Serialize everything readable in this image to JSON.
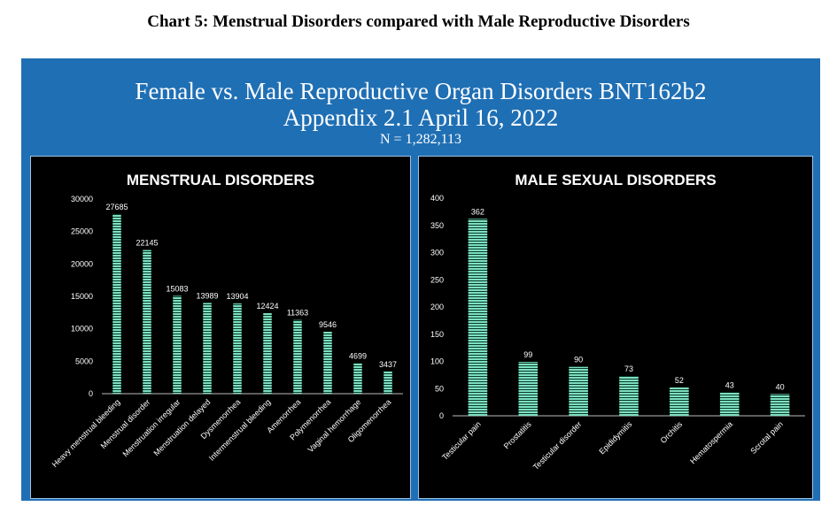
{
  "caption": "Chart 5:  Menstrual Disorders compared with Male Reproductive Disorders",
  "panel": {
    "title_line1": "Female vs. Male Reproductive Organ Disorders BNT162b2",
    "title_line2": "Appendix 2.1 April 16, 2022",
    "subtitle": "N = 1,282,113",
    "background_color": "#1f6fb4"
  },
  "chart_data": [
    {
      "type": "bar",
      "title": "MENSTRUAL DISORDERS",
      "categories": [
        "Heavy menstrual bleeding",
        "Menstrual disorder",
        "Menstruation irregular",
        "Menstruation delayed",
        "Dysmenorrhea",
        "Intermenstrual bleeding",
        "Amenorrhea",
        "Polymenorrhea",
        "Vaginal hemorrhage",
        "Oligomenorrhea"
      ],
      "values": [
        27685,
        22145,
        15083,
        13989,
        13904,
        12424,
        11363,
        9546,
        4699,
        3437
      ],
      "ylim": [
        0,
        30000
      ],
      "yticks": [
        0,
        5000,
        10000,
        15000,
        20000,
        25000,
        30000
      ],
      "bar_color": "#7ee0c0",
      "background": "#000000",
      "grid": false,
      "legend": "none"
    },
    {
      "type": "bar",
      "title": "MALE SEXUAL DISORDERS",
      "categories": [
        "Testicular pain",
        "Prostatitis",
        "Testicular disorder",
        "Epididymitis",
        "Orchitis",
        "Hematospermia",
        "Scrotal pain"
      ],
      "values": [
        362,
        99,
        90,
        73,
        52,
        43,
        40
      ],
      "ylim": [
        0,
        400
      ],
      "yticks": [
        0,
        50,
        100,
        150,
        200,
        250,
        300,
        350,
        400
      ],
      "bar_color": "#7ee0c0",
      "background": "#000000",
      "grid": false,
      "legend": "none"
    }
  ]
}
